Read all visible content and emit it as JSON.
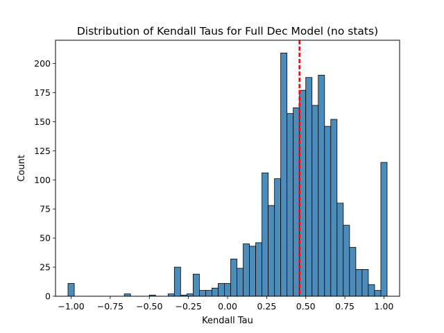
{
  "chart_data": {
    "type": "bar",
    "title": "Distribution of Kendall Taus for Full Dec Model (no stats)",
    "xlabel": "Kendall Tau",
    "ylabel": "Count",
    "xlim": [
      -1.1,
      1.1
    ],
    "ylim": [
      0,
      220
    ],
    "xticks": [
      -1.0,
      -0.75,
      -0.5,
      -0.25,
      0.0,
      0.25,
      0.5,
      0.75,
      1.0
    ],
    "xtick_labels": [
      "−1.00",
      "−0.75",
      "−0.50",
      "−0.25",
      "0.00",
      "0.25",
      "0.50",
      "0.75",
      "1.00"
    ],
    "yticks": [
      0,
      25,
      50,
      75,
      100,
      125,
      150,
      175,
      200
    ],
    "ytick_labels": [
      "0",
      "25",
      "50",
      "75",
      "100",
      "125",
      "150",
      "175",
      "200"
    ],
    "bin_start": -1.02,
    "bin_width": 0.04,
    "bins": [
      {
        "x": -1.0,
        "count": 11
      },
      {
        "x": -0.64,
        "count": 2
      },
      {
        "x": -0.48,
        "count": 1
      },
      {
        "x": -0.36,
        "count": 2
      },
      {
        "x": -0.32,
        "count": 25
      },
      {
        "x": -0.28,
        "count": 1
      },
      {
        "x": -0.24,
        "count": 2
      },
      {
        "x": -0.2,
        "count": 19
      },
      {
        "x": -0.16,
        "count": 5
      },
      {
        "x": -0.12,
        "count": 5
      },
      {
        "x": -0.08,
        "count": 7
      },
      {
        "x": -0.04,
        "count": 11
      },
      {
        "x": 0.0,
        "count": 11
      },
      {
        "x": 0.04,
        "count": 32
      },
      {
        "x": 0.08,
        "count": 24
      },
      {
        "x": 0.12,
        "count": 45
      },
      {
        "x": 0.16,
        "count": 43
      },
      {
        "x": 0.2,
        "count": 46
      },
      {
        "x": 0.24,
        "count": 106
      },
      {
        "x": 0.28,
        "count": 78
      },
      {
        "x": 0.32,
        "count": 101
      },
      {
        "x": 0.36,
        "count": 209
      },
      {
        "x": 0.4,
        "count": 157
      },
      {
        "x": 0.44,
        "count": 162
      },
      {
        "x": 0.48,
        "count": 177
      },
      {
        "x": 0.52,
        "count": 188
      },
      {
        "x": 0.56,
        "count": 164
      },
      {
        "x": 0.6,
        "count": 190
      },
      {
        "x": 0.64,
        "count": 146
      },
      {
        "x": 0.68,
        "count": 152
      },
      {
        "x": 0.72,
        "count": 80
      },
      {
        "x": 0.76,
        "count": 61
      },
      {
        "x": 0.8,
        "count": 42
      },
      {
        "x": 0.84,
        "count": 23
      },
      {
        "x": 0.88,
        "count": 23
      },
      {
        "x": 0.92,
        "count": 10
      },
      {
        "x": 0.96,
        "count": 5
      },
      {
        "x": 1.0,
        "count": 115
      }
    ],
    "mean_line": {
      "x": 0.46,
      "style": "dashed",
      "color": "#ff0000"
    },
    "bar_color": "#4c8cba",
    "bar_edge_color": "#000000",
    "grid": false
  }
}
